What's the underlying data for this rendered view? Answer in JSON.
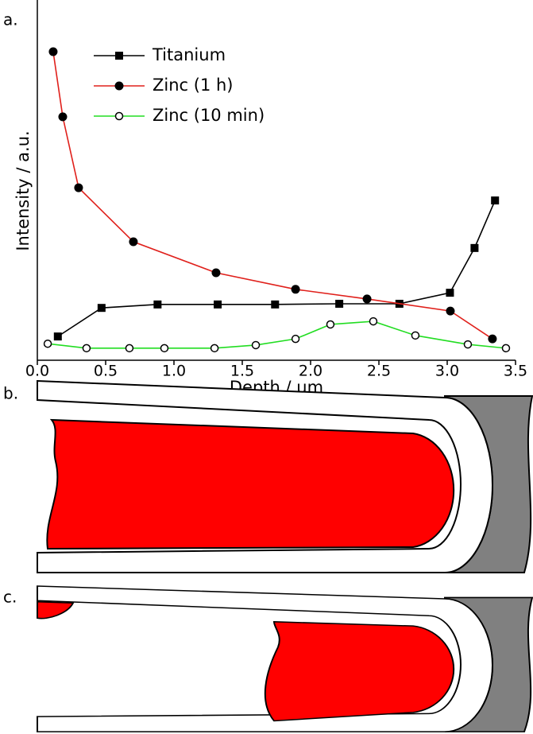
{
  "chart_data": {
    "type": "line",
    "panel_labels": [
      "a.",
      "b.",
      "c."
    ],
    "x_label": "Depth / μm",
    "y_label": "Intensity / a.u.",
    "xlim": [
      0,
      3.5
    ],
    "ylim": [
      0,
      100
    ],
    "xticks": [
      {
        "value": 0,
        "label": "0.0"
      },
      0.5,
      {
        "value": 1,
        "label": "1.0"
      },
      1.5,
      {
        "value": 2,
        "label": "2.0"
      },
      2.5,
      {
        "value": 3,
        "label": "3.0"
      },
      3.5
    ],
    "series": [
      {
        "name": "Titanium",
        "color": "#000000",
        "marker": "square",
        "x": [
          0.15,
          0.47,
          0.88,
          1.32,
          1.74,
          2.21,
          2.65,
          3.02,
          3.2,
          3.35
        ],
        "values": [
          6.9,
          15.2,
          16.2,
          16.2,
          16.2,
          16.4,
          16.4,
          19.6,
          32.6,
          46.4
        ]
      },
      {
        "name": "Zinc (1 h)",
        "color": "#e0201b",
        "marker": "circle",
        "x": [
          0.116,
          0.186,
          0.302,
          0.703,
          1.308,
          1.89,
          2.413,
          3.023,
          3.331
        ],
        "values": [
          89.6,
          70.7,
          50.1,
          34.4,
          25.4,
          20.6,
          17.8,
          14.3,
          6.2
        ]
      },
      {
        "name": "Zinc (10 min)",
        "color": "#22dd22",
        "marker": "open-circle",
        "x": [
          0.076,
          0.36,
          0.674,
          0.93,
          1.297,
          1.599,
          1.89,
          2.145,
          2.459,
          2.767,
          3.151,
          3.43
        ],
        "values": [
          4.8,
          3.5,
          3.5,
          3.5,
          3.5,
          4.4,
          6.2,
          10.4,
          11.3,
          7.2,
          4.6,
          3.5
        ]
      }
    ]
  }
}
